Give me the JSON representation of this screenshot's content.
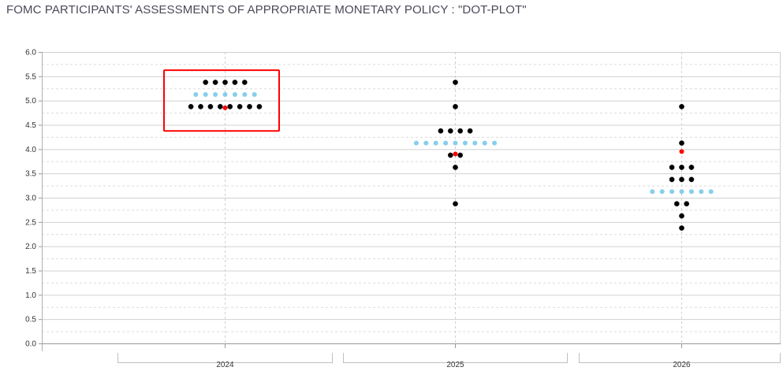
{
  "title": "FOMC PARTICIPANTS' ASSESSMENTS OF APPROPRIATE MONETARY POLICY : \"DOT-PLOT\"",
  "chart_data": {
    "type": "scatter",
    "title": "FOMC PARTICIPANTS' ASSESSMENTS OF APPROPRIATE MONETARY POLICY : \"DOT-PLOT\"",
    "xlabel": "",
    "ylabel": "",
    "categories": [
      "2024",
      "2025",
      "2026"
    ],
    "ylim": [
      0,
      6
    ],
    "yticks": [
      "0.0",
      "0.5",
      "1.0",
      "1.5",
      "2.0",
      "2.5",
      "3.0",
      "3.5",
      "4.0",
      "4.5",
      "5.0",
      "5.5",
      "6.0"
    ],
    "grid": true,
    "colors": {
      "participant": "#000000",
      "prior": "#87ceeb",
      "median": "#ff0000",
      "highlight": "#ff0000"
    },
    "highlight_box": {
      "category": "2024",
      "y_range": [
        4.375,
        5.625
      ]
    },
    "series": [
      {
        "category": "2024",
        "kind": "participant",
        "points": [
          {
            "y": 5.375,
            "count": 5
          },
          {
            "y": 4.875,
            "count": 8
          }
        ]
      },
      {
        "category": "2024",
        "kind": "prior",
        "points": [
          {
            "y": 5.125,
            "count": 7
          }
        ]
      },
      {
        "category": "2024",
        "kind": "median",
        "points": [
          {
            "y": 4.85,
            "count": 1
          }
        ]
      },
      {
        "category": "2025",
        "kind": "participant",
        "points": [
          {
            "y": 5.375,
            "count": 1
          },
          {
            "y": 4.875,
            "count": 1
          },
          {
            "y": 4.375,
            "count": 4
          },
          {
            "y": 3.875,
            "count": 2
          },
          {
            "y": 3.625,
            "count": 1
          },
          {
            "y": 2.875,
            "count": 1
          }
        ]
      },
      {
        "category": "2025",
        "kind": "prior",
        "points": [
          {
            "y": 4.125,
            "count": 9
          }
        ]
      },
      {
        "category": "2025",
        "kind": "median",
        "points": [
          {
            "y": 3.9,
            "count": 1
          }
        ]
      },
      {
        "category": "2026",
        "kind": "participant",
        "points": [
          {
            "y": 4.875,
            "count": 1
          },
          {
            "y": 4.125,
            "count": 1
          },
          {
            "y": 3.625,
            "count": 3
          },
          {
            "y": 3.375,
            "count": 3
          },
          {
            "y": 2.875,
            "count": 2
          },
          {
            "y": 2.625,
            "count": 1
          },
          {
            "y": 2.375,
            "count": 1
          }
        ]
      },
      {
        "category": "2026",
        "kind": "prior",
        "points": [
          {
            "y": 3.125,
            "count": 7
          }
        ]
      },
      {
        "category": "2026",
        "kind": "median",
        "points": [
          {
            "y": 3.95,
            "count": 1
          }
        ]
      }
    ]
  }
}
